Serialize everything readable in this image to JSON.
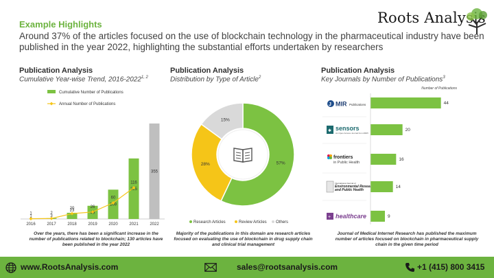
{
  "header": {
    "kicker": "Example Highlights",
    "headline": "Around 37% of the articles focused on the use of blockchain technology in the pharmaceutical industry have been published in the year 2022, highlighting the substantial efforts undertaken by researchers",
    "logo_text": "Roots Analysis"
  },
  "panels": {
    "trend": {
      "title": "Publication Analysis",
      "subtitle": "Cumulative Year-wise Trend, 2016-2022",
      "subtitle_sup": "1, 2",
      "caption": "Over the years, there has been a significant increase in the number of publications related to blockchain; 130 articles have been published in the year 2022"
    },
    "type": {
      "title": "Publication Analysis",
      "subtitle": "Distribution by Type of Article",
      "subtitle_sup": "2",
      "caption": "Majority of the publications in this domain are research articles focused on evaluating the use of blockchain in drug supply chain and clinical trial management"
    },
    "journals": {
      "title": "Publication Analysis",
      "subtitle": "Key Journals by Number of Publications",
      "subtitle_sup": "3",
      "caption": "Journal of Medical Internet Research has published the maximum number of articles focused on blockchain in pharmaceutical supply chain in the given time period"
    }
  },
  "chart_data": [
    {
      "type": "bar",
      "categories": [
        "2016",
        "2017",
        "2018",
        "2019",
        "2020",
        "2021",
        "2022"
      ],
      "series": [
        {
          "name": "Cumulative Number of Publications",
          "values": [
            1,
            3,
            23,
            49,
            109,
            225,
            355
          ],
          "color": "#7cc242"
        },
        {
          "name": "Annual Number of Publications",
          "values": [
            1,
            2,
            20,
            26,
            60,
            116,
            null
          ],
          "color": "#f5c518"
        }
      ],
      "last_bar_color": "#bfbfbf",
      "ylim": [
        0,
        370
      ]
    },
    {
      "type": "pie",
      "labels": [
        "Research Articles",
        "Review Articles",
        "Others"
      ],
      "values": [
        57,
        28,
        15
      ],
      "value_labels": [
        "57%",
        "28%",
        "15%"
      ],
      "colors": [
        "#7cc242",
        "#f5c518",
        "#d9d9d9"
      ]
    },
    {
      "type": "bar",
      "orientation": "horizontal",
      "value_axis_label": "Number of Publications",
      "categories": [
        "JMIR Publications",
        "sensors",
        "frontiers in Public Health",
        "International Journal of Environmental Research and Public Health",
        "healthcare"
      ],
      "values": [
        44,
        20,
        16,
        14,
        9
      ],
      "xlim": [
        0,
        48
      ],
      "color": "#7cc242"
    }
  ],
  "footer": {
    "website": "www.RootsAnalysis.com",
    "email": "sales@rootsanalysis.com",
    "phone": "+1 (415) 800 3415"
  }
}
